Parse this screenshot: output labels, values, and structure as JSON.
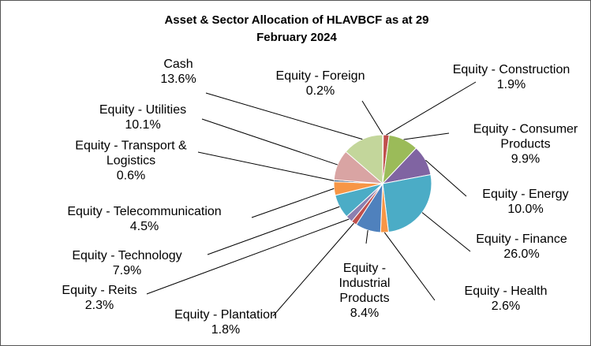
{
  "chart_data": {
    "type": "pie",
    "title": "Asset & Sector Allocation of HLAVBCF as at 29 February 2024",
    "categories": [
      "Equity - Foreign",
      "Equity - Construction",
      "Equity - Consumer Products",
      "Equity - Energy",
      "Equity - Finance",
      "Equity - Health",
      "Equity - Industrial Products",
      "Equity - Plantation",
      "Equity - Reits",
      "Equity - Technology",
      "Equity - Telecommunication",
      "Equity - Transport & Logistics",
      "Equity - Utilities",
      "Cash"
    ],
    "values": [
      0.2,
      1.9,
      9.9,
      10.0,
      26.0,
      2.6,
      8.4,
      1.8,
      2.3,
      7.9,
      4.5,
      0.6,
      10.1,
      13.6
    ],
    "value_labels": [
      "0.2%",
      "1.9%",
      "9.9%",
      "10.0%",
      "26.0%",
      "2.6%",
      "8.4%",
      "1.8%",
      "2.3%",
      "7.9%",
      "4.5%",
      "0.6%",
      "10.1%",
      "13.6%"
    ],
    "colors": [
      "#4f81bd",
      "#c0504d",
      "#9bbb59",
      "#8064a2",
      "#4bacc6",
      "#f79646",
      "#4f81bd",
      "#c0504d",
      "#8c7fb0",
      "#4bacc6",
      "#f79646",
      "#2c4d75",
      "#d9a4a3",
      "#c3d69b"
    ]
  }
}
